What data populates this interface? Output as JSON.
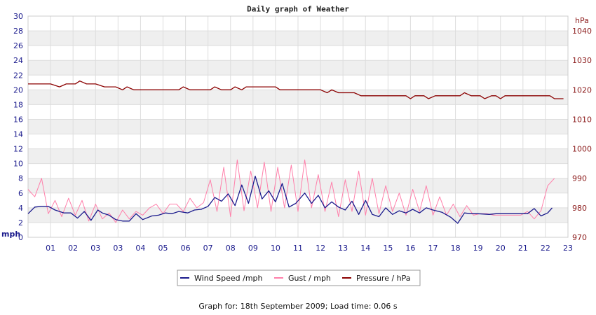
{
  "chart_data": {
    "type": "line",
    "title": "Daily graph of Weather",
    "x_ticks": [
      "01",
      "02",
      "03",
      "03",
      "04",
      "05",
      "06",
      "07",
      "08",
      "09",
      "10",
      "11",
      "12",
      "13",
      "14",
      "15",
      "16",
      "17",
      "18",
      "19",
      "20",
      "21",
      "22",
      "23"
    ],
    "left_axis": {
      "unit": "mph",
      "ylim": [
        0,
        30
      ],
      "ticks": [
        0,
        2,
        4,
        6,
        8,
        10,
        12,
        14,
        16,
        18,
        20,
        22,
        24,
        26,
        28,
        30
      ]
    },
    "right_axis": {
      "unit": "hPa",
      "ylim": [
        970,
        1045
      ],
      "ticks": [
        970,
        980,
        990,
        1000,
        1010,
        1020,
        1030,
        1040
      ]
    },
    "grid": true,
    "legend_position": "bottom",
    "colors": {
      "wind": "#1a1a8c",
      "gust": "#ff7faa",
      "pressure": "#8b0000"
    },
    "series": [
      {
        "key": "wind",
        "name": "Wind Speed /mph",
        "axis": "left",
        "points": [
          [
            0,
            3.2
          ],
          [
            0.3,
            4.1
          ],
          [
            0.6,
            4.2
          ],
          [
            0.9,
            4.2
          ],
          [
            1.2,
            3.7
          ],
          [
            1.6,
            3.3
          ],
          [
            1.9,
            3.3
          ],
          [
            2.2,
            2.6
          ],
          [
            2.5,
            3.5
          ],
          [
            2.8,
            2.3
          ],
          [
            3.1,
            3.7
          ],
          [
            3.3,
            3.3
          ],
          [
            3.6,
            3.0
          ],
          [
            3.9,
            2.4
          ],
          [
            4.2,
            2.2
          ],
          [
            4.5,
            2.2
          ],
          [
            4.8,
            3.2
          ],
          [
            5.1,
            2.4
          ],
          [
            5.5,
            2.9
          ],
          [
            5.8,
            3.0
          ],
          [
            6.1,
            3.3
          ],
          [
            6.4,
            3.2
          ],
          [
            6.7,
            3.5
          ],
          [
            7.1,
            3.3
          ],
          [
            7.4,
            3.7
          ],
          [
            7.7,
            3.8
          ],
          [
            8.0,
            4.2
          ],
          [
            8.3,
            5.4
          ],
          [
            8.6,
            4.9
          ],
          [
            8.9,
            5.9
          ],
          [
            9.2,
            4.3
          ],
          [
            9.5,
            7.1
          ],
          [
            9.8,
            4.6
          ],
          [
            10.1,
            8.3
          ],
          [
            10.4,
            5.2
          ],
          [
            10.7,
            6.3
          ],
          [
            11.0,
            4.8
          ],
          [
            11.3,
            7.3
          ],
          [
            11.6,
            4.1
          ],
          [
            11.9,
            4.6
          ],
          [
            12.3,
            6.0
          ],
          [
            12.6,
            4.6
          ],
          [
            12.9,
            5.7
          ],
          [
            13.2,
            4.0
          ],
          [
            13.5,
            4.8
          ],
          [
            13.8,
            4.1
          ],
          [
            14.1,
            3.7
          ],
          [
            14.4,
            4.9
          ],
          [
            14.7,
            3.1
          ],
          [
            15.0,
            5.0
          ],
          [
            15.3,
            3.1
          ],
          [
            15.6,
            2.8
          ],
          [
            15.9,
            4.0
          ],
          [
            16.2,
            3.1
          ],
          [
            16.5,
            3.6
          ],
          [
            16.8,
            3.3
          ],
          [
            17.1,
            3.8
          ],
          [
            17.4,
            3.3
          ],
          [
            17.7,
            4.0
          ],
          [
            18.0,
            3.7
          ],
          [
            18.4,
            3.4
          ],
          [
            18.8,
            2.7
          ],
          [
            19.1,
            1.9
          ],
          [
            19.4,
            3.3
          ],
          [
            19.7,
            3.2
          ],
          [
            20.0,
            3.2
          ],
          [
            20.5,
            3.1
          ],
          [
            20.8,
            3.2
          ],
          [
            22.2,
            3.2
          ],
          [
            22.5,
            3.9
          ],
          [
            22.8,
            2.9
          ],
          [
            23.1,
            3.3
          ],
          [
            23.3,
            4.0
          ]
        ]
      },
      {
        "key": "gust",
        "name": "Gust / mph",
        "axis": "left",
        "points": [
          [
            0,
            6.5
          ],
          [
            0.3,
            5.5
          ],
          [
            0.6,
            8.0
          ],
          [
            0.9,
            3.2
          ],
          [
            1.2,
            5.0
          ],
          [
            1.5,
            2.8
          ],
          [
            1.8,
            5.3
          ],
          [
            2.1,
            3.0
          ],
          [
            2.4,
            5.0
          ],
          [
            2.7,
            2.2
          ],
          [
            3.0,
            4.5
          ],
          [
            3.3,
            2.5
          ],
          [
            3.6,
            3.3
          ],
          [
            3.9,
            2.0
          ],
          [
            4.2,
            3.7
          ],
          [
            4.5,
            2.5
          ],
          [
            4.8,
            3.5
          ],
          [
            5.1,
            3.0
          ],
          [
            5.4,
            4.0
          ],
          [
            5.7,
            4.5
          ],
          [
            6.0,
            3.2
          ],
          [
            6.3,
            4.5
          ],
          [
            6.6,
            4.5
          ],
          [
            6.9,
            3.5
          ],
          [
            7.2,
            5.3
          ],
          [
            7.5,
            4.0
          ],
          [
            7.8,
            4.7
          ],
          [
            8.1,
            7.8
          ],
          [
            8.4,
            3.5
          ],
          [
            8.7,
            9.5
          ],
          [
            9.0,
            2.8
          ],
          [
            9.3,
            10.5
          ],
          [
            9.6,
            3.6
          ],
          [
            9.9,
            9.0
          ],
          [
            10.2,
            4.0
          ],
          [
            10.5,
            10.2
          ],
          [
            10.8,
            3.5
          ],
          [
            11.1,
            9.5
          ],
          [
            11.4,
            4.0
          ],
          [
            11.7,
            9.8
          ],
          [
            12.0,
            3.5
          ],
          [
            12.3,
            10.5
          ],
          [
            12.6,
            4.0
          ],
          [
            12.9,
            8.5
          ],
          [
            13.2,
            3.5
          ],
          [
            13.5,
            7.5
          ],
          [
            13.8,
            2.8
          ],
          [
            14.1,
            7.8
          ],
          [
            14.4,
            3.5
          ],
          [
            14.7,
            9.0
          ],
          [
            15.0,
            3.0
          ],
          [
            15.3,
            8.0
          ],
          [
            15.6,
            3.2
          ],
          [
            15.9,
            7.0
          ],
          [
            16.2,
            3.5
          ],
          [
            16.5,
            6.0
          ],
          [
            16.8,
            3.0
          ],
          [
            17.1,
            6.5
          ],
          [
            17.4,
            3.5
          ],
          [
            17.7,
            7.0
          ],
          [
            18.0,
            3.0
          ],
          [
            18.3,
            5.5
          ],
          [
            18.6,
            3.0
          ],
          [
            18.9,
            4.5
          ],
          [
            19.2,
            2.8
          ],
          [
            19.5,
            4.3
          ],
          [
            19.8,
            3.0
          ],
          [
            20.1,
            3.2
          ],
          [
            20.4,
            3.2
          ],
          [
            20.7,
            3.0
          ],
          [
            21.0,
            3.0
          ],
          [
            21.3,
            3.0
          ],
          [
            21.6,
            3.0
          ],
          [
            21.9,
            3.0
          ],
          [
            22.2,
            3.5
          ],
          [
            22.5,
            2.5
          ],
          [
            22.8,
            3.6
          ],
          [
            23.1,
            7.0
          ],
          [
            23.4,
            8.0
          ]
        ]
      },
      {
        "key": "pressure",
        "name": "Pressure / hPa",
        "axis": "right",
        "points": [
          [
            0,
            1022
          ],
          [
            1.0,
            1022
          ],
          [
            1.4,
            1021
          ],
          [
            1.7,
            1022
          ],
          [
            2.1,
            1022
          ],
          [
            2.3,
            1023
          ],
          [
            2.6,
            1022
          ],
          [
            3.0,
            1022
          ],
          [
            3.4,
            1021
          ],
          [
            3.9,
            1021
          ],
          [
            4.2,
            1020
          ],
          [
            4.4,
            1021
          ],
          [
            4.7,
            1020
          ],
          [
            6.7,
            1020
          ],
          [
            6.9,
            1021
          ],
          [
            7.2,
            1020
          ],
          [
            8.1,
            1020
          ],
          [
            8.3,
            1021
          ],
          [
            8.6,
            1020
          ],
          [
            9.0,
            1020
          ],
          [
            9.2,
            1021
          ],
          [
            9.5,
            1020
          ],
          [
            9.7,
            1021
          ],
          [
            11.0,
            1021
          ],
          [
            11.2,
            1020
          ],
          [
            13.0,
            1020
          ],
          [
            13.3,
            1019
          ],
          [
            13.5,
            1020
          ],
          [
            13.8,
            1019
          ],
          [
            14.5,
            1019
          ],
          [
            14.8,
            1018
          ],
          [
            16.8,
            1018
          ],
          [
            17.0,
            1017
          ],
          [
            17.2,
            1018
          ],
          [
            17.6,
            1018
          ],
          [
            17.8,
            1017
          ],
          [
            18.1,
            1018
          ],
          [
            19.2,
            1018
          ],
          [
            19.4,
            1019
          ],
          [
            19.7,
            1018
          ],
          [
            20.1,
            1018
          ],
          [
            20.3,
            1017
          ],
          [
            20.6,
            1018
          ],
          [
            20.8,
            1018
          ],
          [
            21.0,
            1017
          ],
          [
            21.2,
            1018
          ],
          [
            23.2,
            1018
          ],
          [
            23.4,
            1017
          ],
          [
            23.8,
            1017
          ]
        ]
      }
    ]
  },
  "footer": {
    "prefix": "Graph for: ",
    "date": "18th September 2009",
    "load": "; Load time: 0.06 s"
  }
}
